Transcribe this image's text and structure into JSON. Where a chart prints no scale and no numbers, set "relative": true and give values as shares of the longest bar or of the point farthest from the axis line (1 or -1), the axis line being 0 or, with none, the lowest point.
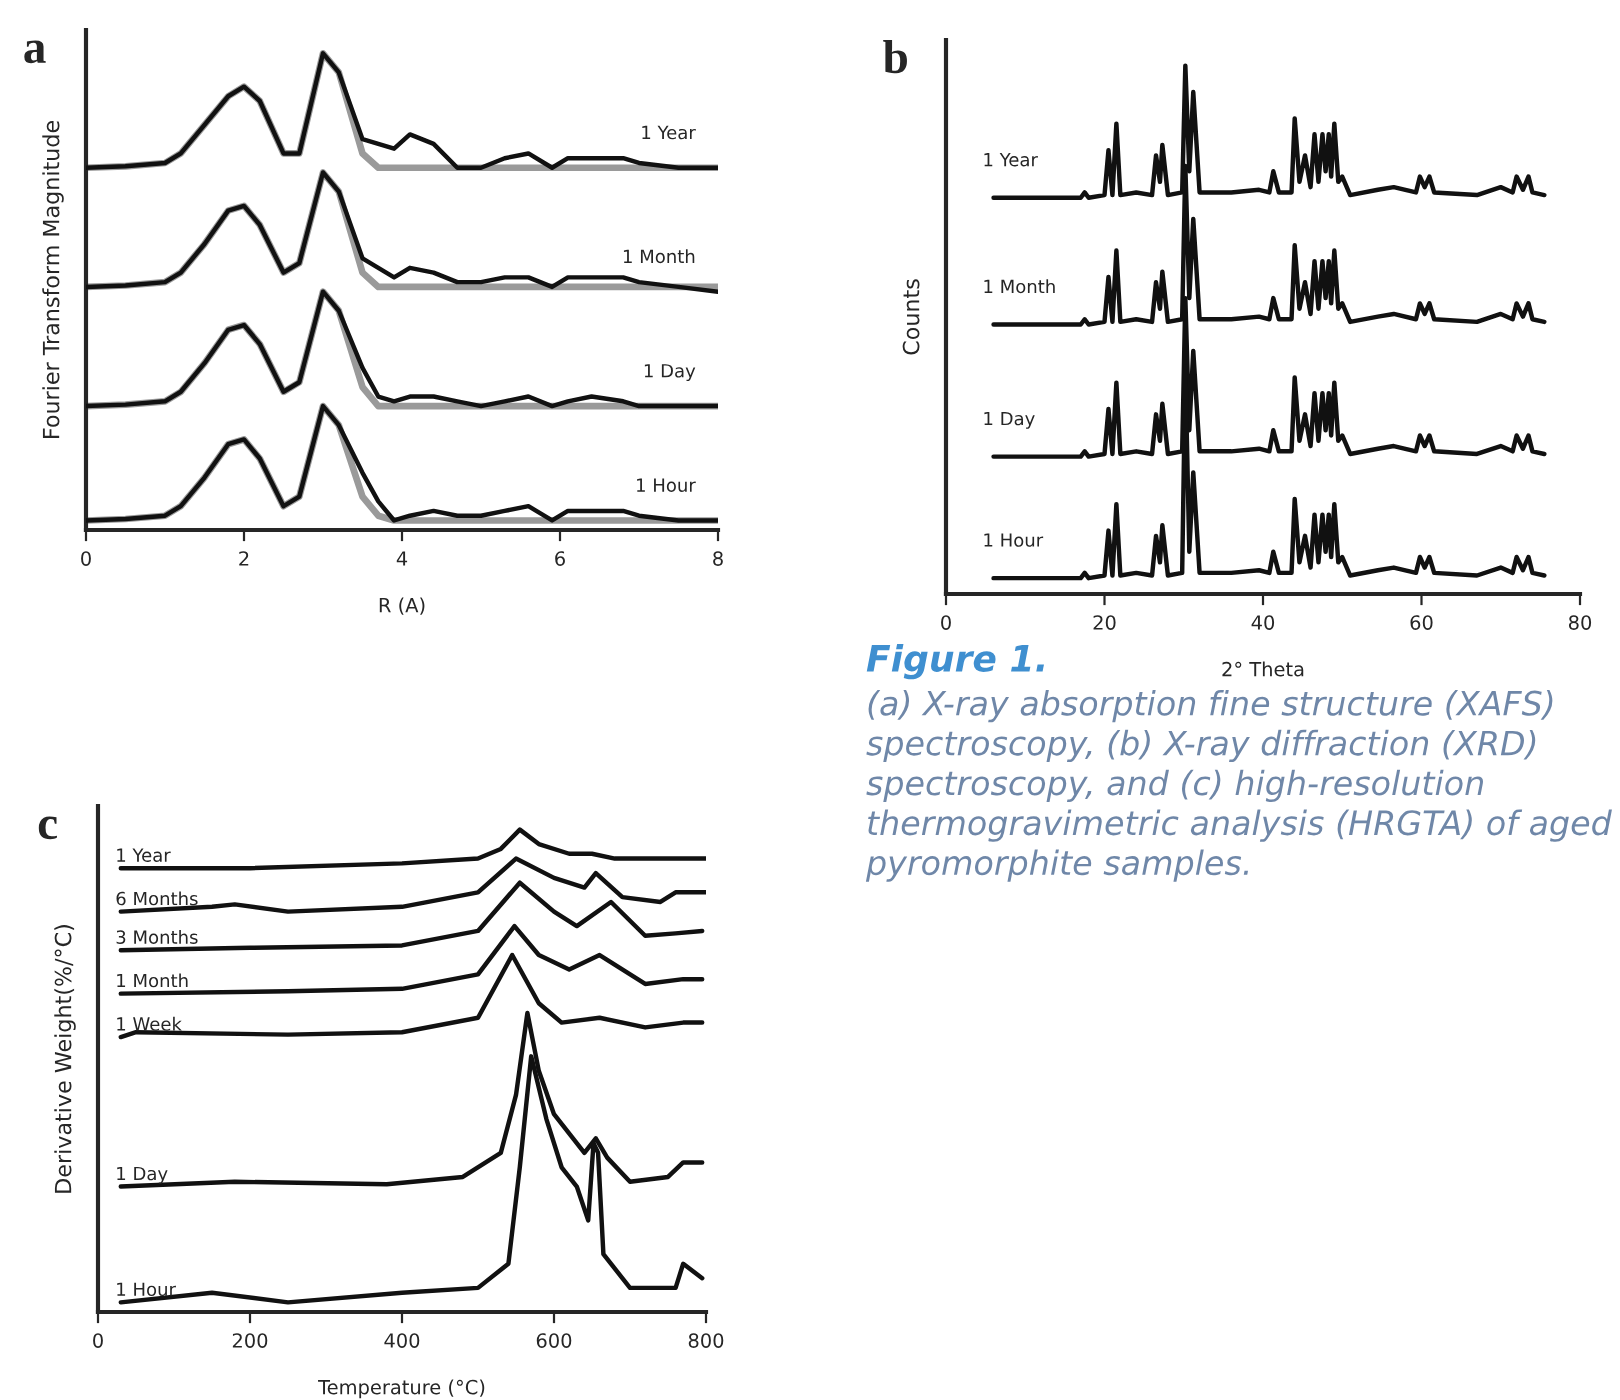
{
  "chart_data": [
    {
      "type": "line",
      "title": "a",
      "xlabel": "R (A)",
      "ylabel": "Fourier Transform Magnitude",
      "relative": true,
      "xlim": [
        0,
        8
      ],
      "xticks": [
        0,
        2,
        4,
        6,
        8
      ],
      "x": [
        0,
        0.5,
        1,
        1.2,
        1.5,
        1.8,
        2,
        2.2,
        2.5,
        2.7,
        3,
        3.2,
        3.5,
        3.7,
        3.9,
        4.1,
        4.4,
        4.7,
        5,
        5.3,
        5.6,
        5.9,
        6.1,
        6.4,
        6.8,
        7,
        7.5,
        8
      ],
      "series": [
        {
          "name": "1 Year",
          "color": "#111111",
          "values": [
            0.76,
            0.763,
            0.77,
            0.79,
            0.85,
            0.91,
            0.93,
            0.9,
            0.79,
            0.79,
            1.0,
            0.96,
            0.82,
            0.81,
            0.8,
            0.83,
            0.81,
            0.76,
            0.76,
            0.78,
            0.79,
            0.76,
            0.78,
            0.78,
            0.78,
            0.77,
            0.76,
            0.76
          ]
        },
        {
          "color": "#9a9a9a",
          "values": [
            0.76,
            0.763,
            0.77,
            0.79,
            0.85,
            0.91,
            0.93,
            0.9,
            0.79,
            0.79,
            1.0,
            0.96,
            0.79,
            0.76,
            0.76,
            0.76,
            0.76,
            0.76,
            0.76,
            0.76,
            0.76,
            0.76,
            0.76,
            0.76,
            0.76,
            0.76,
            0.76,
            0.76
          ]
        },
        {
          "name": "1 Month",
          "color": "#111111",
          "values": [
            0.51,
            0.513,
            0.52,
            0.54,
            0.6,
            0.67,
            0.68,
            0.64,
            0.54,
            0.56,
            0.75,
            0.71,
            0.57,
            0.55,
            0.53,
            0.55,
            0.54,
            0.52,
            0.52,
            0.53,
            0.53,
            0.51,
            0.53,
            0.53,
            0.53,
            0.52,
            0.51,
            0.5
          ]
        },
        {
          "color": "#9a9a9a",
          "values": [
            0.51,
            0.513,
            0.52,
            0.54,
            0.6,
            0.67,
            0.68,
            0.64,
            0.54,
            0.56,
            0.75,
            0.71,
            0.54,
            0.51,
            0.51,
            0.51,
            0.51,
            0.51,
            0.51,
            0.51,
            0.51,
            0.51,
            0.51,
            0.51,
            0.51,
            0.51,
            0.51,
            0.51
          ]
        },
        {
          "name": "1 Day",
          "color": "#111111",
          "values": [
            0.26,
            0.263,
            0.27,
            0.29,
            0.35,
            0.42,
            0.43,
            0.39,
            0.29,
            0.31,
            0.5,
            0.46,
            0.34,
            0.28,
            0.27,
            0.28,
            0.28,
            0.27,
            0.26,
            0.27,
            0.28,
            0.26,
            0.27,
            0.28,
            0.27,
            0.26,
            0.26,
            0.26
          ]
        },
        {
          "color": "#9a9a9a",
          "values": [
            0.26,
            0.263,
            0.27,
            0.29,
            0.35,
            0.42,
            0.43,
            0.39,
            0.29,
            0.31,
            0.5,
            0.46,
            0.3,
            0.26,
            0.26,
            0.26,
            0.26,
            0.26,
            0.26,
            0.26,
            0.26,
            0.26,
            0.26,
            0.26,
            0.26,
            0.26,
            0.26,
            0.26
          ]
        },
        {
          "name": "1 Hour",
          "color": "#111111",
          "values": [
            0.02,
            0.023,
            0.03,
            0.05,
            0.11,
            0.18,
            0.19,
            0.15,
            0.05,
            0.07,
            0.26,
            0.22,
            0.12,
            0.06,
            0.02,
            0.03,
            0.04,
            0.03,
            0.03,
            0.04,
            0.05,
            0.02,
            0.04,
            0.04,
            0.04,
            0.03,
            0.02,
            0.02
          ]
        },
        {
          "color": "#9a9a9a",
          "values": [
            0.02,
            0.023,
            0.03,
            0.05,
            0.11,
            0.18,
            0.19,
            0.15,
            0.05,
            0.07,
            0.26,
            0.22,
            0.07,
            0.03,
            0.02,
            0.02,
            0.02,
            0.02,
            0.02,
            0.02,
            0.02,
            0.02,
            0.02,
            0.02,
            0.02,
            0.02,
            0.02,
            0.02
          ]
        }
      ]
    },
    {
      "type": "line",
      "title": "b",
      "xlabel": "2° Theta",
      "ylabel": "Counts",
      "relative": true,
      "xlim": [
        0,
        80
      ],
      "xticks": [
        0,
        20,
        40,
        60,
        80
      ],
      "x": [
        6,
        17,
        17.5,
        18,
        20,
        20.5,
        21,
        21.5,
        22,
        24,
        26,
        26.5,
        27,
        27.3,
        28,
        29.8,
        30.2,
        30.7,
        31.2,
        32,
        36,
        39.5,
        40.8,
        41.3,
        42,
        43.6,
        44,
        44.6,
        45.3,
        46,
        46.5,
        47,
        47.5,
        47.9,
        48.3,
        48.6,
        49,
        49.5,
        50,
        51,
        54.5,
        56.5,
        59.3,
        59.8,
        60.4,
        61,
        61.6,
        67,
        70,
        71.5,
        72,
        72.8,
        73.5,
        74,
        75.5
      ],
      "series": [
        {
          "name": "1 Year",
          "color": "#111111",
          "values": [
            0.75,
            0.75,
            0.76,
            0.75,
            0.755,
            0.84,
            0.755,
            0.89,
            0.755,
            0.76,
            0.755,
            0.83,
            0.78,
            0.85,
            0.755,
            0.76,
            1.0,
            0.8,
            0.95,
            0.76,
            0.76,
            0.765,
            0.76,
            0.8,
            0.76,
            0.76,
            0.9,
            0.78,
            0.83,
            0.77,
            0.87,
            0.78,
            0.87,
            0.8,
            0.87,
            0.79,
            0.89,
            0.78,
            0.79,
            0.755,
            0.765,
            0.77,
            0.76,
            0.79,
            0.77,
            0.79,
            0.76,
            0.755,
            0.77,
            0.76,
            0.79,
            0.765,
            0.79,
            0.76,
            0.755
          ]
        },
        {
          "name": "1 Month",
          "color": "#111111",
          "values": [
            0.51,
            0.51,
            0.52,
            0.51,
            0.515,
            0.6,
            0.515,
            0.65,
            0.515,
            0.52,
            0.515,
            0.59,
            0.54,
            0.61,
            0.515,
            0.52,
            0.81,
            0.56,
            0.71,
            0.52,
            0.52,
            0.525,
            0.52,
            0.56,
            0.52,
            0.52,
            0.66,
            0.54,
            0.59,
            0.53,
            0.63,
            0.54,
            0.63,
            0.56,
            0.63,
            0.55,
            0.65,
            0.54,
            0.55,
            0.515,
            0.525,
            0.53,
            0.52,
            0.55,
            0.53,
            0.55,
            0.52,
            0.515,
            0.53,
            0.52,
            0.55,
            0.525,
            0.55,
            0.52,
            0.515
          ]
        },
        {
          "name": "1 Day",
          "color": "#111111",
          "values": [
            0.26,
            0.26,
            0.27,
            0.26,
            0.265,
            0.35,
            0.265,
            0.4,
            0.265,
            0.27,
            0.265,
            0.34,
            0.29,
            0.36,
            0.265,
            0.27,
            0.56,
            0.31,
            0.46,
            0.27,
            0.27,
            0.275,
            0.27,
            0.31,
            0.27,
            0.27,
            0.41,
            0.29,
            0.34,
            0.28,
            0.38,
            0.29,
            0.38,
            0.31,
            0.38,
            0.3,
            0.4,
            0.29,
            0.3,
            0.265,
            0.275,
            0.28,
            0.27,
            0.3,
            0.28,
            0.3,
            0.27,
            0.265,
            0.28,
            0.27,
            0.3,
            0.275,
            0.3,
            0.27,
            0.265
          ]
        },
        {
          "name": "1 Hour",
          "color": "#111111",
          "values": [
            0.03,
            0.03,
            0.04,
            0.03,
            0.035,
            0.12,
            0.035,
            0.17,
            0.035,
            0.04,
            0.035,
            0.11,
            0.06,
            0.13,
            0.035,
            0.04,
            0.43,
            0.08,
            0.23,
            0.04,
            0.04,
            0.045,
            0.04,
            0.08,
            0.04,
            0.04,
            0.18,
            0.06,
            0.11,
            0.05,
            0.15,
            0.06,
            0.15,
            0.08,
            0.15,
            0.07,
            0.17,
            0.06,
            0.07,
            0.035,
            0.045,
            0.05,
            0.04,
            0.07,
            0.05,
            0.07,
            0.04,
            0.035,
            0.05,
            0.04,
            0.07,
            0.045,
            0.07,
            0.04,
            0.035
          ]
        }
      ]
    },
    {
      "type": "line",
      "title": "c",
      "xlabel": "Temperature (°C)",
      "ylabel": "Derivative Weight(%/°C)",
      "relative": true,
      "xlim": [
        0,
        800
      ],
      "xticks": [
        0,
        200,
        400,
        600,
        800
      ],
      "annotations": [
        "Figure 1.",
        "(a) X-ray absorption fine structure (XAFS) spectroscopy, (b) X-ray diffraction (XRD) spectroscopy, and (c) high-resolution thermogravimetric analysis (HRGTA) of aged pyromorphite samples."
      ],
      "series": [
        {
          "name": "1 Year",
          "color": "#111111",
          "x": [
            30,
            150,
            200,
            400,
            500,
            530,
            555,
            580,
            620,
            650,
            680,
            750,
            760,
            800
          ],
          "values": [
            0.92,
            0.92,
            0.92,
            0.93,
            0.94,
            0.96,
            1.0,
            0.97,
            0.95,
            0.95,
            0.94,
            0.94,
            0.94,
            0.94
          ]
        },
        {
          "name": "6 Months",
          "color": "#111111",
          "x": [
            30,
            150,
            180,
            250,
            400,
            500,
            550,
            600,
            640,
            655,
            690,
            740,
            760,
            800
          ],
          "values": [
            0.83,
            0.84,
            0.845,
            0.83,
            0.84,
            0.87,
            0.94,
            0.9,
            0.88,
            0.91,
            0.86,
            0.85,
            0.87,
            0.87
          ]
        },
        {
          "name": "3 Months",
          "color": "#111111",
          "x": [
            30,
            200,
            400,
            500,
            555,
            600,
            630,
            675,
            720,
            760,
            795
          ],
          "values": [
            0.75,
            0.755,
            0.76,
            0.79,
            0.89,
            0.83,
            0.8,
            0.85,
            0.78,
            0.785,
            0.79
          ]
        },
        {
          "name": "1 Month",
          "color": "#111111",
          "x": [
            30,
            250,
            400,
            500,
            548,
            580,
            620,
            660,
            720,
            770,
            795
          ],
          "values": [
            0.66,
            0.665,
            0.67,
            0.7,
            0.8,
            0.74,
            0.71,
            0.74,
            0.68,
            0.69,
            0.69
          ]
        },
        {
          "name": "1 Week",
          "color": "#111111",
          "x": [
            30,
            50,
            250,
            400,
            500,
            545,
            580,
            610,
            660,
            720,
            770,
            795
          ],
          "values": [
            0.57,
            0.58,
            0.575,
            0.58,
            0.61,
            0.74,
            0.64,
            0.6,
            0.61,
            0.59,
            0.6,
            0.6
          ]
        },
        {
          "name": "1 Day",
          "color": "#111111",
          "x": [
            30,
            180,
            380,
            480,
            530,
            550,
            565,
            580,
            600,
            640,
            655,
            670,
            700,
            750,
            770,
            795
          ],
          "values": [
            0.26,
            0.27,
            0.265,
            0.28,
            0.33,
            0.45,
            0.62,
            0.5,
            0.41,
            0.33,
            0.36,
            0.32,
            0.27,
            0.28,
            0.31,
            0.31
          ]
        },
        {
          "name": "1 Hour",
          "color": "#111111",
          "x": [
            30,
            150,
            250,
            400,
            500,
            540,
            555,
            570,
            590,
            610,
            630,
            645,
            652,
            658,
            665,
            700,
            760,
            770,
            795
          ],
          "values": [
            0.02,
            0.04,
            0.02,
            0.04,
            0.05,
            0.1,
            0.3,
            0.53,
            0.4,
            0.3,
            0.26,
            0.19,
            0.35,
            0.33,
            0.12,
            0.05,
            0.05,
            0.1,
            0.07
          ]
        }
      ]
    }
  ]
}
